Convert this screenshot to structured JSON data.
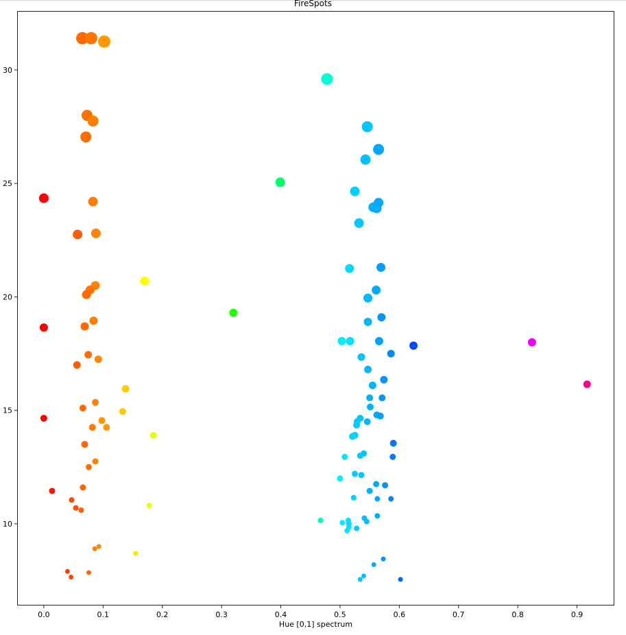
{
  "chart_data": {
    "type": "scatter",
    "title": "FireSpots",
    "xlabel": "Hue [0,1] spectrum",
    "ylabel": "",
    "xlim": [
      -0.045,
      0.963
    ],
    "ylim": [
      6.4,
      32.6
    ],
    "grid": false,
    "legend": null,
    "x_ticks": [
      "0.0",
      "0.1",
      "0.2",
      "0.3",
      "0.4",
      "0.5",
      "0.6",
      "0.7",
      "0.8",
      "0.9"
    ],
    "y_ticks": [
      "10",
      "15",
      "20",
      "25",
      "30"
    ],
    "points": [
      {
        "x": 0.065,
        "y": 31.4,
        "r": 9,
        "color": "#ff6a00"
      },
      {
        "x": 0.08,
        "y": 31.4,
        "r": 9,
        "color": "#ff7500"
      },
      {
        "x": 0.102,
        "y": 31.25,
        "r": 9,
        "color": "#ff9a00"
      },
      {
        "x": 0.478,
        "y": 29.6,
        "r": 8.5,
        "color": "#00ffd5"
      },
      {
        "x": 0.073,
        "y": 28.0,
        "r": 8,
        "color": "#ff6e00"
      },
      {
        "x": 0.083,
        "y": 27.75,
        "r": 8,
        "color": "#ff7d00"
      },
      {
        "x": 0.071,
        "y": 27.05,
        "r": 8,
        "color": "#ff6c00"
      },
      {
        "x": 0.546,
        "y": 27.5,
        "r": 8,
        "color": "#00c4ff"
      },
      {
        "x": 0.565,
        "y": 26.5,
        "r": 8,
        "color": "#00a8ff"
      },
      {
        "x": 0.543,
        "y": 26.05,
        "r": 7.5,
        "color": "#00c0ff"
      },
      {
        "x": 0.399,
        "y": 25.05,
        "r": 7,
        "color": "#00ff66"
      },
      {
        "x": 0.525,
        "y": 24.65,
        "r": 7,
        "color": "#00d0ff"
      },
      {
        "x": 0.0,
        "y": 24.35,
        "r": 7,
        "color": "#ff0000"
      },
      {
        "x": 0.083,
        "y": 24.2,
        "r": 7,
        "color": "#ff7d00"
      },
      {
        "x": 0.565,
        "y": 24.15,
        "r": 7,
        "color": "#00a8ff"
      },
      {
        "x": 0.556,
        "y": 23.95,
        "r": 7,
        "color": "#00b0ff"
      },
      {
        "x": 0.562,
        "y": 23.9,
        "r": 7,
        "color": "#00aaff"
      },
      {
        "x": 0.532,
        "y": 23.25,
        "r": 7,
        "color": "#00c8ff"
      },
      {
        "x": 0.057,
        "y": 22.75,
        "r": 7,
        "color": "#ff5e00"
      },
      {
        "x": 0.088,
        "y": 22.8,
        "r": 7,
        "color": "#ff8400"
      },
      {
        "x": 0.516,
        "y": 21.25,
        "r": 6.5,
        "color": "#00dcff"
      },
      {
        "x": 0.569,
        "y": 21.3,
        "r": 6.5,
        "color": "#00a0ff"
      },
      {
        "x": 0.17,
        "y": 20.7,
        "r": 6.5,
        "color": "#ffff00"
      },
      {
        "x": 0.087,
        "y": 20.5,
        "r": 6.5,
        "color": "#ff8200"
      },
      {
        "x": 0.078,
        "y": 20.3,
        "r": 6.5,
        "color": "#ff7400"
      },
      {
        "x": 0.072,
        "y": 20.1,
        "r": 6.5,
        "color": "#ff6a00"
      },
      {
        "x": 0.561,
        "y": 20.3,
        "r": 6.5,
        "color": "#00a8ff"
      },
      {
        "x": 0.547,
        "y": 19.95,
        "r": 6.5,
        "color": "#00b8ff"
      },
      {
        "x": 0.32,
        "y": 19.3,
        "r": 6,
        "color": "#21ff00"
      },
      {
        "x": 0.57,
        "y": 19.1,
        "r": 6,
        "color": "#0098ff"
      },
      {
        "x": 0.084,
        "y": 18.95,
        "r": 6,
        "color": "#ff7e00"
      },
      {
        "x": 0.547,
        "y": 18.9,
        "r": 6,
        "color": "#00b8ff"
      },
      {
        "x": 0.069,
        "y": 18.7,
        "r": 6,
        "color": "#ff6800"
      },
      {
        "x": 0.0,
        "y": 18.65,
        "r": 6,
        "color": "#ff0000"
      },
      {
        "x": 0.503,
        "y": 18.05,
        "r": 6,
        "color": "#00ecff"
      },
      {
        "x": 0.517,
        "y": 18.05,
        "r": 6,
        "color": "#00e0ff"
      },
      {
        "x": 0.566,
        "y": 18.05,
        "r": 6,
        "color": "#00a4ff"
      },
      {
        "x": 0.824,
        "y": 18.0,
        "r": 6,
        "color": "#f000ff"
      },
      {
        "x": 0.624,
        "y": 17.85,
        "r": 6,
        "color": "#0048ff"
      },
      {
        "x": 0.586,
        "y": 17.5,
        "r": 5.5,
        "color": "#0088ff"
      },
      {
        "x": 0.075,
        "y": 17.45,
        "r": 5.5,
        "color": "#ff6f00"
      },
      {
        "x": 0.092,
        "y": 17.25,
        "r": 5.5,
        "color": "#ff8a00"
      },
      {
        "x": 0.536,
        "y": 17.35,
        "r": 5.5,
        "color": "#00c4ff"
      },
      {
        "x": 0.056,
        "y": 17.0,
        "r": 5.5,
        "color": "#ff5e00"
      },
      {
        "x": 0.547,
        "y": 16.8,
        "r": 5.5,
        "color": "#00b8ff"
      },
      {
        "x": 0.574,
        "y": 16.35,
        "r": 5.5,
        "color": "#0098ff"
      },
      {
        "x": 0.917,
        "y": 16.15,
        "r": 5.5,
        "color": "#ff0080"
      },
      {
        "x": 0.555,
        "y": 16.1,
        "r": 5.5,
        "color": "#00b2ff"
      },
      {
        "x": 0.138,
        "y": 15.95,
        "r": 5.5,
        "color": "#ffd000"
      },
      {
        "x": 0.55,
        "y": 15.55,
        "r": 5,
        "color": "#00b4ff"
      },
      {
        "x": 0.571,
        "y": 15.55,
        "r": 5,
        "color": "#0098ff"
      },
      {
        "x": 0.087,
        "y": 15.35,
        "r": 5,
        "color": "#ff8400"
      },
      {
        "x": 0.551,
        "y": 15.15,
        "r": 5,
        "color": "#00b4ff"
      },
      {
        "x": 0.066,
        "y": 15.1,
        "r": 5,
        "color": "#ff6800"
      },
      {
        "x": 0.133,
        "y": 14.95,
        "r": 5,
        "color": "#ffcc00"
      },
      {
        "x": 0.562,
        "y": 14.8,
        "r": 5,
        "color": "#00aaff"
      },
      {
        "x": 0.568,
        "y": 14.75,
        "r": 5,
        "color": "#00a0ff"
      },
      {
        "x": 0.0,
        "y": 14.65,
        "r": 5,
        "color": "#ff0000"
      },
      {
        "x": 0.534,
        "y": 14.65,
        "r": 5,
        "color": "#00c4ff"
      },
      {
        "x": 0.529,
        "y": 14.5,
        "r": 5,
        "color": "#00c8ff"
      },
      {
        "x": 0.098,
        "y": 14.55,
        "r": 5,
        "color": "#ff9200"
      },
      {
        "x": 0.546,
        "y": 14.5,
        "r": 5,
        "color": "#00b8ff"
      },
      {
        "x": 0.528,
        "y": 14.35,
        "r": 5,
        "color": "#00ccff"
      },
      {
        "x": 0.082,
        "y": 14.25,
        "r": 5,
        "color": "#ff7c00"
      },
      {
        "x": 0.106,
        "y": 14.25,
        "r": 5,
        "color": "#ff9800"
      },
      {
        "x": 0.185,
        "y": 13.9,
        "r": 5,
        "color": "#e8ff00"
      },
      {
        "x": 0.525,
        "y": 13.9,
        "r": 5,
        "color": "#00d0ff"
      },
      {
        "x": 0.521,
        "y": 13.85,
        "r": 5,
        "color": "#00d4ff"
      },
      {
        "x": 0.59,
        "y": 13.55,
        "r": 5,
        "color": "#0078ff"
      },
      {
        "x": 0.069,
        "y": 13.5,
        "r": 5,
        "color": "#ff6800"
      },
      {
        "x": 0.54,
        "y": 13.1,
        "r": 4.5,
        "color": "#00c0ff"
      },
      {
        "x": 0.534,
        "y": 13.0,
        "r": 4.5,
        "color": "#00c8ff"
      },
      {
        "x": 0.508,
        "y": 12.95,
        "r": 4.5,
        "color": "#00e6ff"
      },
      {
        "x": 0.589,
        "y": 12.95,
        "r": 4.5,
        "color": "#0078ff"
      },
      {
        "x": 0.087,
        "y": 12.75,
        "r": 4.5,
        "color": "#ff8400"
      },
      {
        "x": 0.076,
        "y": 12.5,
        "r": 4.5,
        "color": "#ff7000"
      },
      {
        "x": 0.525,
        "y": 12.2,
        "r": 4.5,
        "color": "#00ccff"
      },
      {
        "x": 0.536,
        "y": 12.15,
        "r": 4.5,
        "color": "#00c4ff"
      },
      {
        "x": 0.5,
        "y": 12.0,
        "r": 4.5,
        "color": "#00f0ff"
      },
      {
        "x": 0.561,
        "y": 11.75,
        "r": 4.5,
        "color": "#00a8ff"
      },
      {
        "x": 0.576,
        "y": 11.7,
        "r": 4.5,
        "color": "#0090ff"
      },
      {
        "x": 0.066,
        "y": 11.6,
        "r": 4.5,
        "color": "#ff6600"
      },
      {
        "x": 0.014,
        "y": 11.45,
        "r": 4.5,
        "color": "#ff1500"
      },
      {
        "x": 0.55,
        "y": 11.45,
        "r": 4.5,
        "color": "#00b4ff"
      },
      {
        "x": 0.523,
        "y": 11.15,
        "r": 4,
        "color": "#00d0ff"
      },
      {
        "x": 0.563,
        "y": 11.1,
        "r": 4,
        "color": "#00a8ff"
      },
      {
        "x": 0.586,
        "y": 11.1,
        "r": 4,
        "color": "#0084ff"
      },
      {
        "x": 0.047,
        "y": 11.05,
        "r": 4,
        "color": "#ff4a00"
      },
      {
        "x": 0.054,
        "y": 10.7,
        "r": 4,
        "color": "#ff5200"
      },
      {
        "x": 0.063,
        "y": 10.6,
        "r": 4,
        "color": "#ff6000"
      },
      {
        "x": 0.178,
        "y": 10.8,
        "r": 4,
        "color": "#eeff00"
      },
      {
        "x": 0.563,
        "y": 10.35,
        "r": 4,
        "color": "#00a8ff"
      },
      {
        "x": 0.467,
        "y": 10.15,
        "r": 4,
        "color": "#00ffbc"
      },
      {
        "x": 0.514,
        "y": 10.15,
        "r": 4,
        "color": "#00e0ff"
      },
      {
        "x": 0.541,
        "y": 10.25,
        "r": 4,
        "color": "#00c0ff"
      },
      {
        "x": 0.545,
        "y": 10.1,
        "r": 4,
        "color": "#00bcff"
      },
      {
        "x": 0.504,
        "y": 10.05,
        "r": 4,
        "color": "#00ecff"
      },
      {
        "x": 0.515,
        "y": 10.0,
        "r": 4,
        "color": "#00e0ff"
      },
      {
        "x": 0.515,
        "y": 9.85,
        "r": 4,
        "color": "#00e2ff"
      },
      {
        "x": 0.528,
        "y": 9.8,
        "r": 4,
        "color": "#00ccff"
      },
      {
        "x": 0.512,
        "y": 9.7,
        "r": 4,
        "color": "#00e4ff"
      },
      {
        "x": 0.093,
        "y": 9.0,
        "r": 3.5,
        "color": "#ff8c00"
      },
      {
        "x": 0.086,
        "y": 8.9,
        "r": 3.5,
        "color": "#ff8200"
      },
      {
        "x": 0.155,
        "y": 8.7,
        "r": 3.5,
        "color": "#ffe400"
      },
      {
        "x": 0.573,
        "y": 8.45,
        "r": 3.5,
        "color": "#0094ff"
      },
      {
        "x": 0.557,
        "y": 8.2,
        "r": 3.5,
        "color": "#00acff"
      },
      {
        "x": 0.04,
        "y": 7.9,
        "r": 3.5,
        "color": "#ff3c00"
      },
      {
        "x": 0.076,
        "y": 7.85,
        "r": 3.5,
        "color": "#ff6a00"
      },
      {
        "x": 0.046,
        "y": 7.65,
        "r": 3.5,
        "color": "#ff4400"
      },
      {
        "x": 0.54,
        "y": 7.7,
        "r": 3.5,
        "color": "#00c0ff"
      },
      {
        "x": 0.534,
        "y": 7.55,
        "r": 3.5,
        "color": "#00c6ff"
      },
      {
        "x": 0.602,
        "y": 7.55,
        "r": 3.5,
        "color": "#0068ff"
      }
    ]
  }
}
